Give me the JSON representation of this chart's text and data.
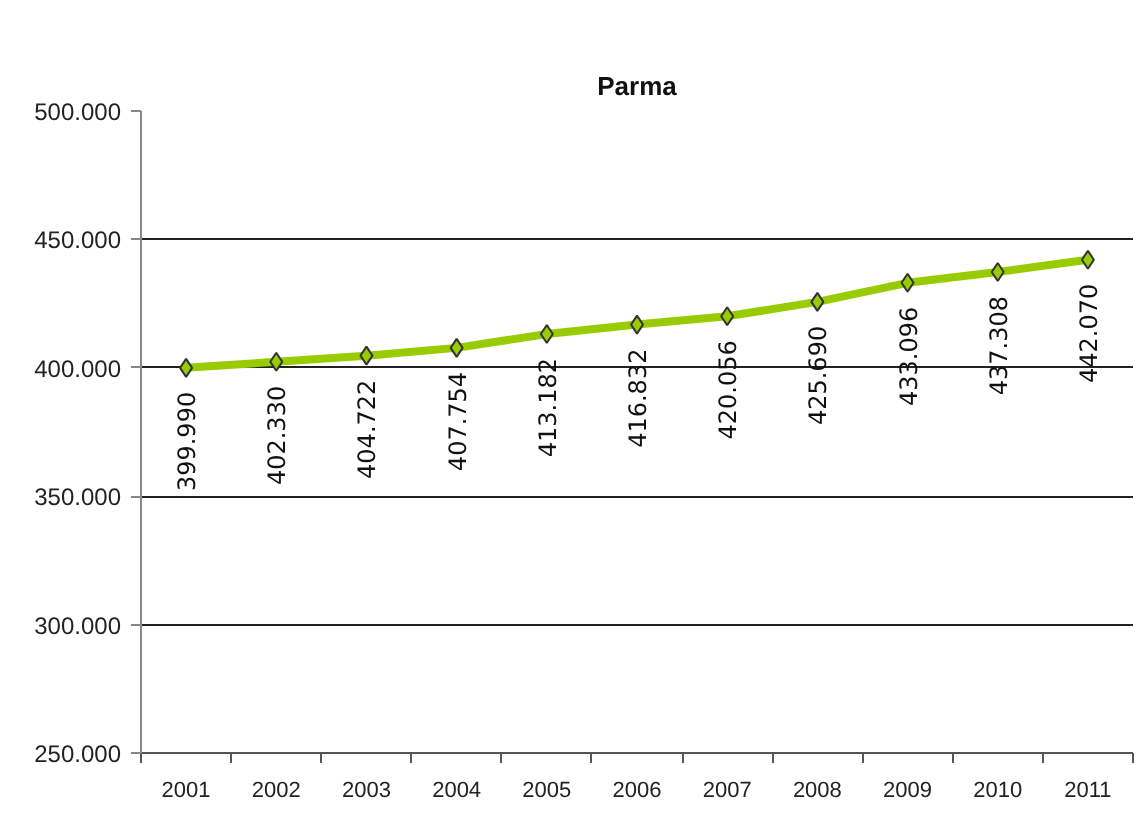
{
  "chart_data": {
    "type": "line",
    "title": "Parma",
    "categories": [
      "2001",
      "2002",
      "2003",
      "2004",
      "2005",
      "2006",
      "2007",
      "2008",
      "2009",
      "2010",
      "2011"
    ],
    "series": [
      {
        "color": "#99cc00",
        "values": [
          399990,
          402330,
          404722,
          407754,
          413182,
          416832,
          420056,
          425690,
          433096,
          437308,
          442070
        ],
        "value_labels": [
          "399.990",
          "402.330",
          "404.722",
          "407.754",
          "413.182",
          "416.832",
          "420.056",
          "425.690",
          "433.096",
          "437.308",
          "442.070"
        ]
      }
    ],
    "ylim": [
      250000,
      500000
    ],
    "yticks": [
      {
        "value": 250000,
        "label": "250.000"
      },
      {
        "value": 300000,
        "label": "300.000"
      },
      {
        "value": 350000,
        "label": "350.000"
      },
      {
        "value": 400000,
        "label": "400.000"
      },
      {
        "value": 450000,
        "label": "450.000"
      },
      {
        "value": 500000,
        "label": "500.000"
      }
    ],
    "grid": "y",
    "marker": "diamond",
    "line_style": "solid"
  }
}
